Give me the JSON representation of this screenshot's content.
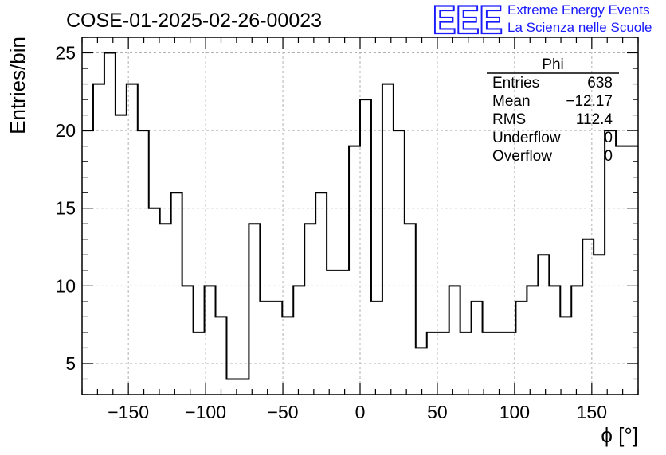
{
  "chart_data": {
    "type": "histogram",
    "title": "COSE-01-2025-02-26-00023",
    "xlabel": "ϕ [°]",
    "ylabel": "Entries/bin",
    "xlim": [
      -180,
      180
    ],
    "ylim": [
      3,
      26
    ],
    "grid": true,
    "bin_edges_start": -180,
    "bin_width": 7.2,
    "values": [
      20,
      23,
      25,
      21,
      23,
      20,
      15,
      14,
      16,
      10,
      7,
      10,
      8,
      4,
      4,
      14,
      9,
      9,
      8,
      10,
      14,
      16,
      11,
      11,
      19,
      22,
      9,
      23,
      20,
      14,
      6,
      7,
      7,
      10,
      7,
      9,
      7,
      7,
      7,
      9,
      10,
      12,
      10,
      8,
      10,
      13,
      12,
      20,
      19,
      19
    ],
    "x_ticks": [
      "−150",
      "−100",
      "−50",
      "0",
      "50",
      "100",
      "150"
    ],
    "x_tick_values": [
      -150,
      -100,
      -50,
      0,
      50,
      100,
      150
    ],
    "y_ticks": [
      "5",
      "10",
      "15",
      "20",
      "25"
    ],
    "y_tick_values": [
      5,
      10,
      15,
      20,
      25
    ],
    "stats_box": {
      "name": "Phi",
      "rows": [
        {
          "label": "Entries",
          "value": "638"
        },
        {
          "label": "Mean",
          "value": "−12.17"
        },
        {
          "label": "RMS",
          "value": "112.4"
        },
        {
          "label": "Underflow",
          "value": "0"
        },
        {
          "label": "Overflow",
          "value": "0"
        }
      ]
    }
  },
  "logo": {
    "mark": "EEE",
    "line1": "Extreme Energy Events",
    "line2": "La Scienza nelle Scuole",
    "color": "#1a1aff"
  }
}
